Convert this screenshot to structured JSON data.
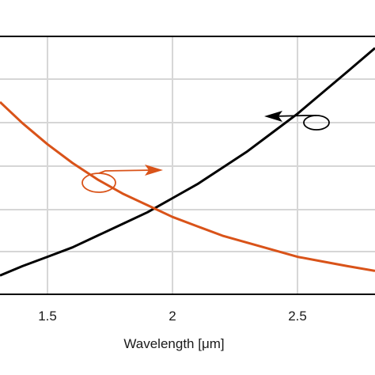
{
  "chart_data": {
    "type": "line",
    "xlabel": "Wavelength [μm]",
    "x_ticks": [
      "1.5",
      "2",
      "2.5"
    ],
    "x_tick_values": [
      1.5,
      2.0,
      2.5
    ],
    "xlim": [
      1.31,
      2.81
    ],
    "grid": true,
    "legend": "none",
    "series": [
      {
        "color": "#000000",
        "axis": "left",
        "x": [
          1.31,
          1.4,
          1.5,
          1.6,
          1.7,
          1.8,
          1.9,
          2.0,
          2.1,
          2.2,
          2.3,
          2.4,
          2.5,
          2.6,
          2.7,
          2.81
        ],
        "y": [
          0.08,
          0.12,
          0.16,
          0.2,
          0.25,
          0.3,
          0.35,
          0.41,
          0.47,
          0.54,
          0.61,
          0.69,
          0.77,
          0.86,
          0.95,
          1.05
        ]
      },
      {
        "color": "#d95319",
        "axis": "right",
        "x": [
          1.31,
          1.4,
          1.5,
          1.6,
          1.7,
          1.8,
          1.9,
          2.0,
          2.1,
          2.2,
          2.3,
          2.4,
          2.5,
          2.6,
          2.7,
          2.81
        ],
        "y": [
          0.82,
          0.73,
          0.64,
          0.56,
          0.49,
          0.43,
          0.38,
          0.33,
          0.29,
          0.25,
          0.22,
          0.19,
          0.16,
          0.14,
          0.12,
          0.1
        ]
      }
    ],
    "ylim": [
      0,
      1.1
    ],
    "annotations": [
      {
        "type": "ellipse-arrow",
        "series": 0,
        "direction": "left",
        "color": "#000000"
      },
      {
        "type": "ellipse-arrow",
        "series": 1,
        "direction": "right",
        "color": "#d95319"
      }
    ]
  }
}
